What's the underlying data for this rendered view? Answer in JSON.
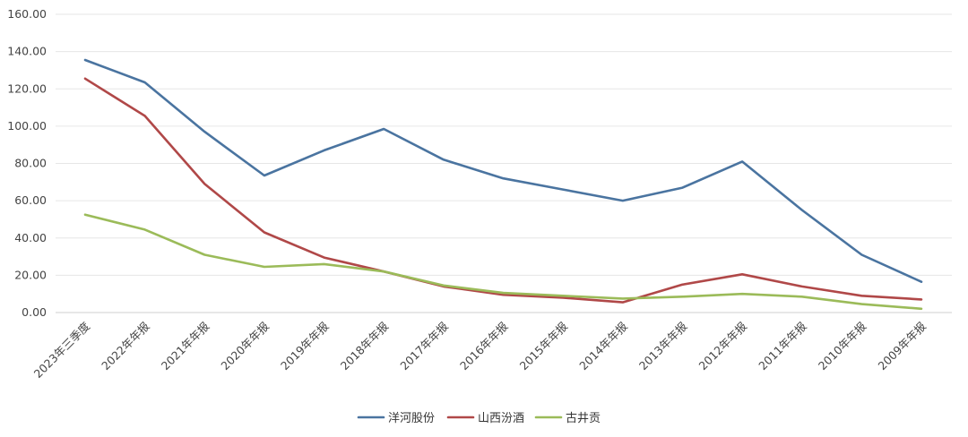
{
  "chart_data": {
    "type": "line",
    "categories": [
      "2023年三季度",
      "2022年年报",
      "2021年年报",
      "2020年年报",
      "2019年年报",
      "2018年年报",
      "2017年年报",
      "2016年年报",
      "2015年年报",
      "2014年年报",
      "2013年年报",
      "2012年年报",
      "2011年年报",
      "2010年年报",
      "2009年年报"
    ],
    "y_ticks": [
      "0.00",
      "20.00",
      "40.00",
      "60.00",
      "80.00",
      "100.00",
      "120.00",
      "140.00",
      "160.00"
    ],
    "ylim": [
      0,
      160
    ],
    "grid": true,
    "legend_position": "bottom",
    "series": [
      {
        "name": "洋河股份",
        "color": "#4a74a0",
        "values": [
          135.5,
          123.5,
          97,
          73.5,
          87,
          98.5,
          82,
          72,
          66,
          60,
          67,
          81,
          55,
          31,
          16.5
        ]
      },
      {
        "name": "山西汾酒",
        "color": "#b04848",
        "values": [
          125.5,
          105.5,
          69,
          43,
          29.5,
          22,
          14,
          9.5,
          8,
          5.5,
          15,
          20.5,
          14,
          9,
          7
        ]
      },
      {
        "name": "古井贡",
        "color": "#9bbb59",
        "values": [
          52.5,
          44.5,
          31,
          24.5,
          26,
          22,
          14.5,
          10.5,
          9,
          7.5,
          8.5,
          10,
          8.5,
          4.5,
          2
        ]
      }
    ]
  }
}
